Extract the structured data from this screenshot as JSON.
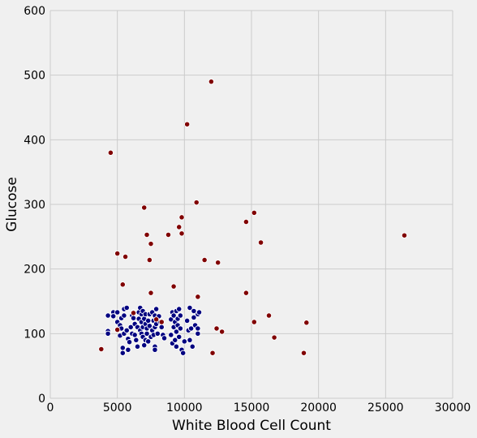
{
  "chart_data": {
    "type": "scatter",
    "title": "",
    "xlabel": "White Blood Cell Count",
    "ylabel": "Glucose",
    "xlim": [
      0,
      30000
    ],
    "ylim": [
      0,
      600
    ],
    "x_ticks": [
      0,
      5000,
      10000,
      15000,
      20000,
      25000,
      30000
    ],
    "y_ticks": [
      0,
      100,
      200,
      300,
      400,
      500,
      600
    ],
    "x_tick_labels": [
      "0",
      "5000",
      "10000",
      "15000",
      "20000",
      "25000",
      "30000"
    ],
    "y_tick_labels": [
      "0",
      "100",
      "200",
      "300",
      "400",
      "500",
      "600"
    ],
    "grid": true,
    "legend": "none",
    "colors": {
      "background": "#f0f0f0",
      "grid": "#cbcbcb",
      "point_edge": "#ffffff"
    },
    "series": [
      {
        "color": "#000080",
        "points": [
          [
            4300,
            128
          ],
          [
            4300,
            104
          ],
          [
            4300,
            100
          ],
          [
            4700,
            133
          ],
          [
            4700,
            127
          ],
          [
            5000,
            133
          ],
          [
            5000,
            118
          ],
          [
            5200,
            113
          ],
          [
            5200,
            97
          ],
          [
            5300,
            124
          ],
          [
            5300,
            108
          ],
          [
            5400,
            70
          ],
          [
            5400,
            78
          ],
          [
            5500,
            138
          ],
          [
            5500,
            128
          ],
          [
            5500,
            100
          ],
          [
            5700,
            140
          ],
          [
            5700,
            105
          ],
          [
            5800,
            92
          ],
          [
            5800,
            75
          ],
          [
            5900,
            87
          ],
          [
            6000,
            110
          ],
          [
            6100,
            128
          ],
          [
            6100,
            100
          ],
          [
            6200,
            133
          ],
          [
            6200,
            124
          ],
          [
            6300,
            115
          ],
          [
            6300,
            98
          ],
          [
            6400,
            90
          ],
          [
            6500,
            110
          ],
          [
            6500,
            80
          ],
          [
            6600,
            133
          ],
          [
            6600,
            123
          ],
          [
            6700,
            140
          ],
          [
            6700,
            105
          ],
          [
            6800,
            130
          ],
          [
            6800,
            118
          ],
          [
            6800,
            100
          ],
          [
            6900,
            135
          ],
          [
            6900,
            110
          ],
          [
            6900,
            95
          ],
          [
            7000,
            82
          ],
          [
            7000,
            123
          ],
          [
            7100,
            130
          ],
          [
            7100,
            115
          ],
          [
            7100,
            90
          ],
          [
            7200,
            108
          ],
          [
            7200,
            100
          ],
          [
            7300,
            120
          ],
          [
            7300,
            88
          ],
          [
            7400,
            130
          ],
          [
            7400,
            112
          ],
          [
            7500,
            95
          ],
          [
            7600,
            133
          ],
          [
            7600,
            105
          ],
          [
            7700,
            120
          ],
          [
            7700,
            98
          ],
          [
            7800,
            128
          ],
          [
            7800,
            110
          ],
          [
            7800,
            80
          ],
          [
            7900,
            138
          ],
          [
            7900,
            115
          ],
          [
            7800,
            75
          ],
          [
            8000,
            100
          ],
          [
            8100,
            127
          ],
          [
            8200,
            118
          ],
          [
            8300,
            110
          ],
          [
            8400,
            98
          ],
          [
            8500,
            93
          ],
          [
            9000,
            122
          ],
          [
            9000,
            98
          ],
          [
            9100,
            133
          ],
          [
            9100,
            85
          ],
          [
            9200,
            128
          ],
          [
            9200,
            110
          ],
          [
            9300,
            118
          ],
          [
            9300,
            90
          ],
          [
            9400,
            135
          ],
          [
            9400,
            103
          ],
          [
            9400,
            80
          ],
          [
            9500,
            123
          ],
          [
            9500,
            113
          ],
          [
            9600,
            138
          ],
          [
            9600,
            95
          ],
          [
            9700,
            128
          ],
          [
            9700,
            108
          ],
          [
            9800,
            75
          ],
          [
            9900,
            70
          ],
          [
            10000,
            88
          ],
          [
            10200,
            120
          ],
          [
            10300,
            105
          ],
          [
            10400,
            140
          ],
          [
            10400,
            90
          ],
          [
            10500,
            108
          ],
          [
            10600,
            80
          ],
          [
            10700,
            135
          ],
          [
            10700,
            125
          ],
          [
            10800,
            113
          ],
          [
            11000,
            130
          ],
          [
            11000,
            108
          ],
          [
            11000,
            100
          ],
          [
            11100,
            133
          ]
        ]
      },
      {
        "color": "#800000",
        "points": [
          [
            3800,
            76
          ],
          [
            4500,
            380
          ],
          [
            5000,
            224
          ],
          [
            5000,
            106
          ],
          [
            5400,
            176
          ],
          [
            5600,
            219
          ],
          [
            6200,
            132
          ],
          [
            7000,
            295
          ],
          [
            7200,
            253
          ],
          [
            7400,
            214
          ],
          [
            7500,
            239
          ],
          [
            7500,
            163
          ],
          [
            7900,
            122
          ],
          [
            8300,
            118
          ],
          [
            8800,
            253
          ],
          [
            9200,
            173
          ],
          [
            9600,
            265
          ],
          [
            9800,
            280
          ],
          [
            9800,
            255
          ],
          [
            10200,
            424
          ],
          [
            10900,
            303
          ],
          [
            11000,
            157
          ],
          [
            11500,
            214
          ],
          [
            12000,
            490
          ],
          [
            12100,
            70
          ],
          [
            12400,
            108
          ],
          [
            12500,
            210
          ],
          [
            12800,
            103
          ],
          [
            14600,
            273
          ],
          [
            14600,
            163
          ],
          [
            15200,
            287
          ],
          [
            15200,
            118
          ],
          [
            15700,
            241
          ],
          [
            16300,
            128
          ],
          [
            16700,
            94
          ],
          [
            18900,
            70
          ],
          [
            19100,
            117
          ],
          [
            26400,
            252
          ]
        ]
      }
    ]
  }
}
